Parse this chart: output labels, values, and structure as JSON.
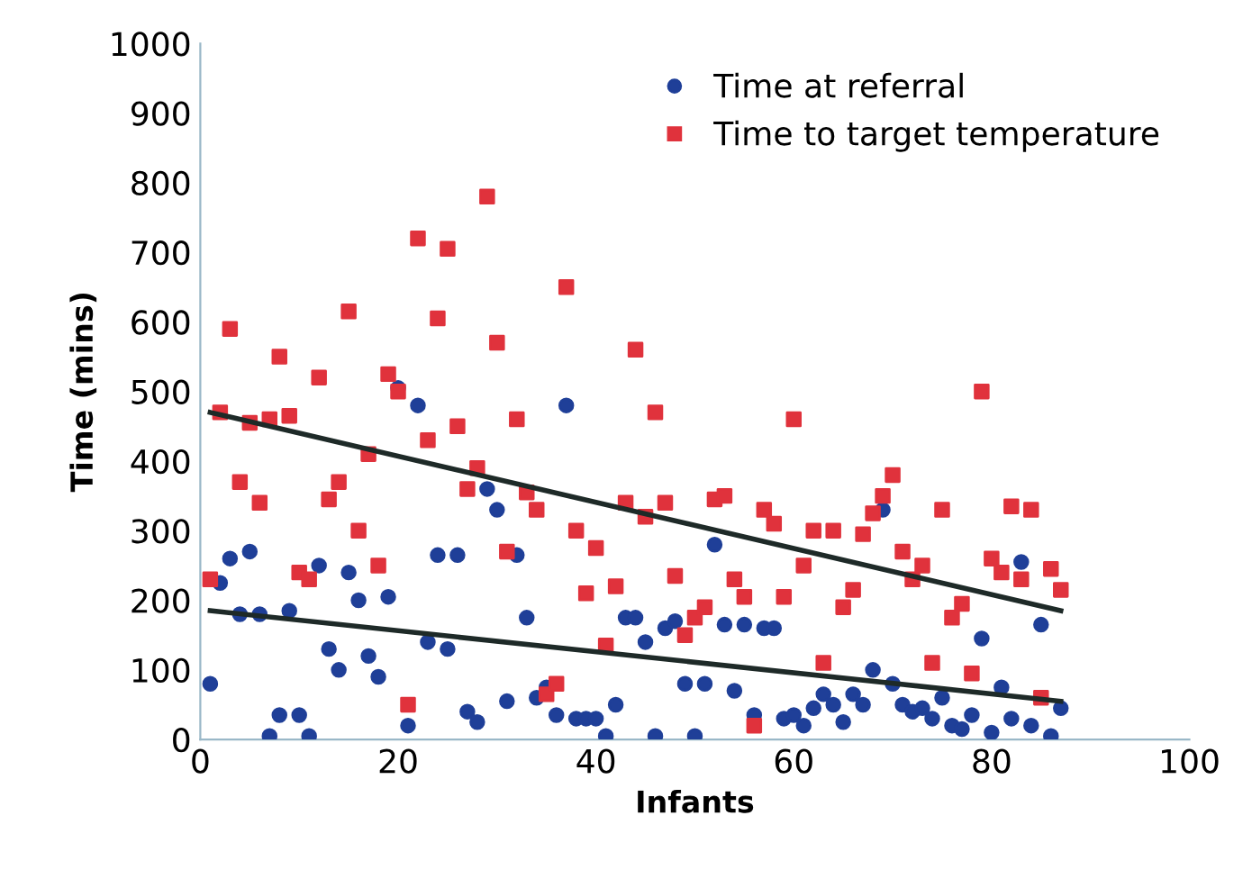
{
  "chart_data": {
    "type": "scatter",
    "xlabel": "Infants",
    "ylabel": "Time (mins)",
    "xlim": [
      0,
      100
    ],
    "ylim": [
      0,
      1000
    ],
    "xticks": [
      0,
      20,
      40,
      60,
      80,
      100
    ],
    "yticks": [
      0,
      100,
      200,
      300,
      400,
      500,
      600,
      700,
      800,
      900,
      1000
    ],
    "grid": false,
    "legend": "top right",
    "series": [
      {
        "name": "Time at referral",
        "color": "#1f3f98",
        "marker": "circle",
        "x": [
          1,
          2,
          3,
          4,
          5,
          6,
          7,
          8,
          9,
          10,
          11,
          12,
          13,
          14,
          15,
          16,
          17,
          18,
          19,
          20,
          21,
          22,
          23,
          24,
          25,
          26,
          27,
          28,
          29,
          30,
          31,
          32,
          33,
          34,
          35,
          36,
          37,
          38,
          39,
          40,
          41,
          42,
          43,
          44,
          45,
          46,
          47,
          48,
          49,
          50,
          51,
          52,
          53,
          54,
          55,
          56,
          57,
          58,
          59,
          60,
          61,
          62,
          63,
          64,
          65,
          66,
          67,
          68,
          69,
          70,
          71,
          72,
          73,
          74,
          75,
          76,
          77,
          78,
          79,
          80,
          81,
          82,
          83,
          84,
          85,
          86,
          87
        ],
        "values": [
          80,
          225,
          260,
          180,
          270,
          180,
          5,
          35,
          185,
          35,
          5,
          250,
          130,
          100,
          240,
          200,
          120,
          90,
          205,
          505,
          20,
          480,
          140,
          265,
          130,
          265,
          40,
          25,
          360,
          330,
          55,
          265,
          175,
          60,
          75,
          35,
          480,
          30,
          30,
          30,
          5,
          50,
          175,
          175,
          140,
          5,
          160,
          170,
          80,
          5,
          80,
          280,
          165,
          70,
          165,
          35,
          160,
          160,
          30,
          35,
          20,
          45,
          65,
          50,
          25,
          65,
          50,
          100,
          330,
          80,
          50,
          40,
          45,
          30,
          60,
          20,
          15,
          35,
          145,
          10,
          75,
          30,
          255,
          20,
          165,
          5,
          45
        ]
      },
      {
        "name": "Time to target temperature",
        "color": "#e0323c",
        "marker": "square",
        "x": [
          1,
          2,
          3,
          4,
          5,
          6,
          7,
          8,
          9,
          10,
          11,
          12,
          13,
          14,
          15,
          16,
          17,
          18,
          19,
          20,
          21,
          22,
          23,
          24,
          25,
          26,
          27,
          28,
          29,
          30,
          31,
          32,
          33,
          34,
          35,
          36,
          37,
          38,
          39,
          40,
          41,
          42,
          43,
          44,
          45,
          46,
          47,
          48,
          49,
          50,
          51,
          52,
          53,
          54,
          55,
          56,
          57,
          58,
          59,
          60,
          61,
          62,
          63,
          64,
          65,
          66,
          67,
          68,
          69,
          70,
          71,
          72,
          73,
          74,
          75,
          76,
          77,
          78,
          79,
          80,
          81,
          82,
          83,
          84,
          85,
          86,
          87
        ],
        "values": [
          230,
          470,
          590,
          370,
          455,
          340,
          460,
          550,
          465,
          240,
          230,
          520,
          345,
          370,
          615,
          300,
          410,
          250,
          525,
          500,
          50,
          720,
          430,
          605,
          705,
          450,
          360,
          390,
          780,
          570,
          270,
          460,
          355,
          330,
          65,
          80,
          650,
          300,
          210,
          275,
          135,
          220,
          340,
          560,
          320,
          470,
          340,
          235,
          150,
          175,
          190,
          345,
          350,
          230,
          205,
          20,
          330,
          310,
          205,
          460,
          250,
          300,
          110,
          300,
          190,
          215,
          295,
          325,
          350,
          380,
          270,
          230,
          250,
          110,
          330,
          175,
          195,
          95,
          500,
          260,
          240,
          335,
          230,
          330,
          60,
          245,
          215
        ]
      },
      {
        "type": "line",
        "color": "#1e2a28",
        "x": [
          1,
          87
        ],
        "values": [
          470,
          185
        ]
      },
      {
        "type": "line",
        "color": "#1e2a28",
        "x": [
          1,
          87
        ],
        "values": [
          185,
          55
        ]
      }
    ]
  }
}
